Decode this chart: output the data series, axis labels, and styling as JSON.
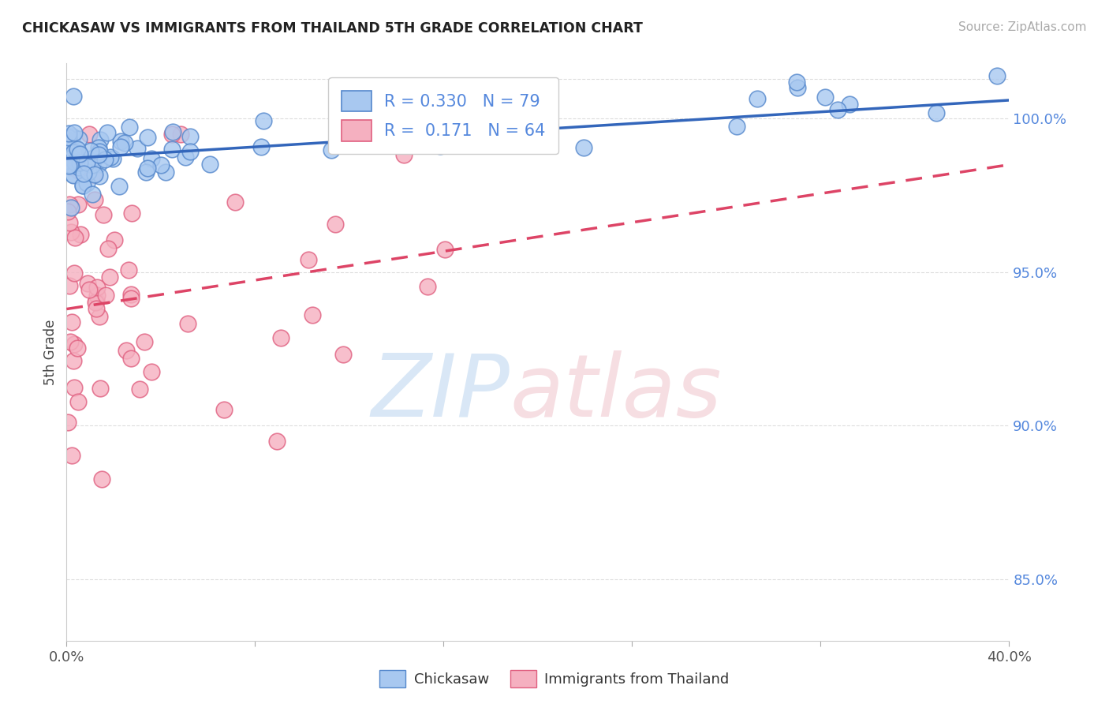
{
  "title": "CHICKASAW VS IMMIGRANTS FROM THAILAND 5TH GRADE CORRELATION CHART",
  "source": "Source: ZipAtlas.com",
  "ylabel": "5th Grade",
  "xlim": [
    0.0,
    40.0
  ],
  "ylim": [
    83.0,
    101.8
  ],
  "yticks": [
    85.0,
    90.0,
    95.0,
    100.0
  ],
  "ytick_labels": [
    "85.0%",
    "90.0%",
    "95.0%",
    "100.0%"
  ],
  "xtick_positions": [
    0,
    8,
    16,
    24,
    32,
    40
  ],
  "xtick_labels": [
    "0.0%",
    "",
    "",
    "",
    "",
    "40.0%"
  ],
  "chickasaw_color": "#A8C8F0",
  "thailand_color": "#F5B0C0",
  "chickasaw_edge": "#5588CC",
  "thailand_edge": "#E06080",
  "trendline_blue": "#3366BB",
  "trendline_pink": "#DD4466",
  "R_chickasaw": 0.33,
  "N_chickasaw": 79,
  "R_thailand": 0.171,
  "N_thailand": 64,
  "blue_trend_x0": 0.0,
  "blue_trend_y0": 98.7,
  "blue_trend_x1": 40.0,
  "blue_trend_y1": 100.6,
  "pink_trend_x0": 0.0,
  "pink_trend_y0": 93.8,
  "pink_trend_x1": 40.0,
  "pink_trend_y1": 98.5,
  "grid_color": "#DDDDDD",
  "tick_color": "#5588DD",
  "spine_color": "#CCCCCC"
}
